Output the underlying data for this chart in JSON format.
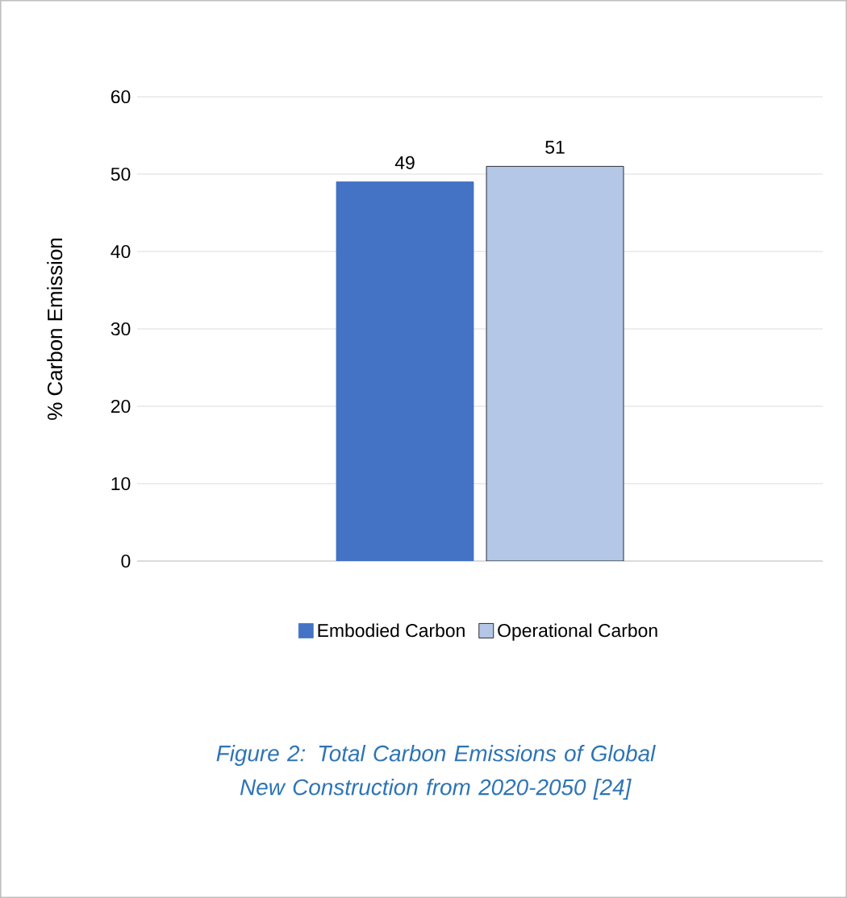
{
  "chart_data": {
    "type": "bar",
    "ylabel": "% Carbon Emission",
    "categories": [
      null
    ],
    "series": [
      {
        "name": "Embodied Carbon",
        "color": "#4472c4",
        "values": [
          49
        ]
      },
      {
        "name": "Operational Carbon",
        "color": "#b4c7e7",
        "values": [
          51
        ]
      }
    ],
    "ylim": [
      0,
      60
    ],
    "yticks": [
      0,
      10,
      20,
      30,
      40,
      50,
      60
    ],
    "grid": "y",
    "legend": "bottom",
    "data_labels": true,
    "annotations": [
      "*Figure 2: Total Carbon Emissions of Global New Construction from 2020-2050 [24]*"
    ]
  }
}
